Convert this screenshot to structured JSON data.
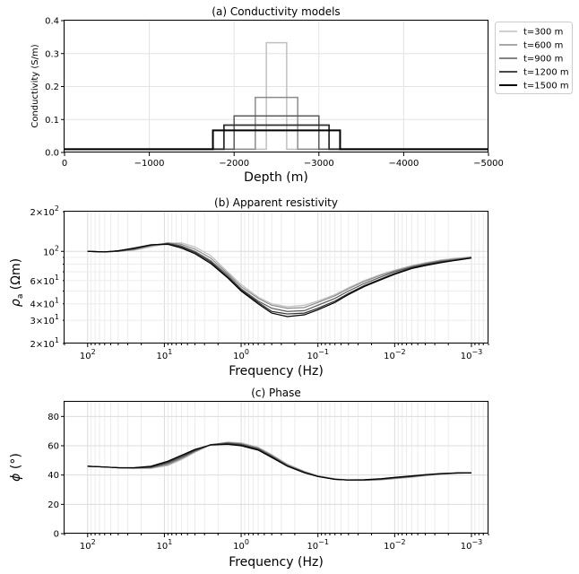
{
  "chart_data": [
    {
      "id": "a",
      "type": "line",
      "title": "(a) Conductivity models",
      "xlabel": "Depth (m)",
      "ylabel": "Conductivity (S/m)",
      "xlim": [
        0,
        -5000
      ],
      "ylim": [
        0,
        0.4
      ],
      "xticks": [
        0,
        -1000,
        -2000,
        -3000,
        -4000,
        -5000
      ],
      "xtick_labels": [
        "0",
        "−1000",
        "−2000",
        "−3000",
        "−4000",
        "−5000"
      ],
      "yticks": [
        0,
        0.1,
        0.2,
        0.3,
        0.4
      ],
      "ytick_labels": [
        "0.0",
        "0.1",
        "0.2",
        "0.3",
        "0.4"
      ],
      "background": 0.01,
      "grid": true,
      "legend_position": "outside-right",
      "series": [
        {
          "name": "t=300 m",
          "color": "#c0c0c0",
          "width": 1.5,
          "x_start": -2380,
          "x_end": -2620,
          "value": 0.333
        },
        {
          "name": "t=600 m",
          "color": "#8c8c8c",
          "width": 1.5,
          "x_start": -2250,
          "x_end": -2750,
          "value": 0.167
        },
        {
          "name": "t=900 m",
          "color": "#5a5a5a",
          "width": 1.5,
          "x_start": -2000,
          "x_end": -3000,
          "value": 0.111
        },
        {
          "name": "t=1200 m",
          "color": "#2e2e2e",
          "width": 1.8,
          "x_start": -1880,
          "x_end": -3120,
          "value": 0.083
        },
        {
          "name": "t=1500 m",
          "color": "#000000",
          "width": 2.0,
          "x_start": -1750,
          "x_end": -3250,
          "value": 0.067
        }
      ]
    },
    {
      "id": "b",
      "type": "line",
      "title": "(b) Apparent resistivity",
      "xlabel": "Frequency (Hz)",
      "ylabel": "ρa (Ωm)",
      "xscale": "log",
      "yscale": "log",
      "xlim": [
        200,
        0.0006
      ],
      "ylim": [
        20,
        200
      ],
      "x": [
        100,
        60,
        40,
        25,
        15,
        9,
        6,
        4,
        2.5,
        1.5,
        1,
        0.6,
        0.4,
        0.25,
        0.15,
        0.1,
        0.06,
        0.04,
        0.025,
        0.015,
        0.01,
        0.006,
        0.004,
        0.0025,
        0.0015,
        0.001
      ],
      "series": [
        {
          "name": "t=300 m",
          "color": "#c0c0c0",
          "values": [
            100,
            99,
            100,
            102,
            108,
            115,
            116,
            108,
            93,
            70,
            56,
            45,
            40,
            38,
            39,
            42,
            47,
            53,
            60,
            67,
            72,
            78,
            82,
            86,
            89,
            91
          ]
        },
        {
          "name": "t=600 m",
          "color": "#8c8c8c",
          "values": [
            100,
            99,
            100,
            103,
            110,
            116,
            113,
            104,
            89,
            68,
            54,
            44,
            39,
            37,
            37.5,
            41,
            46,
            52,
            59,
            66,
            71,
            77,
            81,
            85,
            88,
            90
          ]
        },
        {
          "name": "t=900 m",
          "color": "#5a5a5a",
          "values": [
            100,
            99,
            100,
            104,
            111,
            115,
            110,
            100,
            85,
            66,
            52,
            42,
            37,
            35,
            35.5,
            39,
            44,
            50,
            57,
            64,
            70,
            76,
            80,
            84,
            87,
            90
          ]
        },
        {
          "name": "t=1200 m",
          "color": "#2e2e2e",
          "values": [
            100,
            99,
            101,
            105,
            112,
            114,
            108,
            98,
            83,
            64,
            51,
            41,
            35,
            33.5,
            34,
            37,
            42,
            48,
            55,
            62,
            68,
            75,
            79,
            83,
            86,
            89
          ]
        },
        {
          "name": "t=1500 m",
          "color": "#000000",
          "values": [
            100,
            99,
            101,
            106,
            112,
            113,
            106,
            96,
            81,
            63,
            50,
            40,
            34,
            32,
            33,
            36,
            41,
            47,
            54,
            61,
            67,
            74,
            78,
            82,
            86,
            89
          ]
        }
      ],
      "grid": true
    },
    {
      "id": "c",
      "type": "line",
      "title": "(c) Phase",
      "xlabel": "Frequency (Hz)",
      "ylabel": "ϕ (°)",
      "xscale": "log",
      "xlim": [
        200,
        0.0006
      ],
      "ylim": [
        0,
        90
      ],
      "yticks": [
        0,
        20,
        40,
        60,
        80
      ],
      "ytick_labels": [
        "0",
        "20",
        "40",
        "60",
        "80"
      ],
      "x": [
        100,
        60,
        40,
        25,
        15,
        9,
        6,
        4,
        2.5,
        1.5,
        1,
        0.6,
        0.4,
        0.25,
        0.15,
        0.1,
        0.06,
        0.04,
        0.025,
        0.015,
        0.01,
        0.006,
        0.004,
        0.0025,
        0.0015,
        0.001
      ],
      "series": [
        {
          "name": "t=300 m",
          "color": "#c0c0c0",
          "values": [
            46,
            45.5,
            45,
            44.6,
            44.5,
            46.5,
            50.5,
            55.5,
            60.5,
            62.5,
            62,
            59,
            54,
            47.5,
            42.5,
            39.5,
            37.5,
            36.5,
            36.3,
            36.7,
            37.5,
            38.5,
            39.5,
            40.5,
            41.2,
            41.5
          ]
        },
        {
          "name": "t=600 m",
          "color": "#8c8c8c",
          "values": [
            46,
            45.5,
            45,
            44.7,
            44.8,
            47.2,
            51.2,
            56,
            60.7,
            62.3,
            61.5,
            58.5,
            53.5,
            47,
            42.3,
            39.3,
            37.3,
            36.5,
            36.4,
            36.9,
            37.7,
            38.8,
            39.8,
            40.7,
            41.3,
            41.5
          ]
        },
        {
          "name": "t=900 m",
          "color": "#5a5a5a",
          "values": [
            46,
            45.5,
            45,
            44.8,
            45.2,
            48,
            52,
            56.5,
            60.8,
            61.8,
            61,
            58,
            53,
            46.5,
            42,
            39.2,
            37.2,
            36.5,
            36.5,
            37.1,
            38,
            39,
            40,
            40.8,
            41.4,
            41.5
          ]
        },
        {
          "name": "t=1200 m",
          "color": "#2e2e2e",
          "values": [
            46,
            45.5,
            45,
            44.9,
            45.6,
            48.8,
            52.8,
            57,
            60.7,
            61.3,
            60.5,
            57.5,
            52.5,
            46.2,
            41.8,
            39,
            37.1,
            36.6,
            36.7,
            37.3,
            38.2,
            39.2,
            40.1,
            40.9,
            41.5,
            41.5
          ]
        },
        {
          "name": "t=1500 m",
          "color": "#000000",
          "values": [
            46,
            45.5,
            45,
            45,
            46,
            49.5,
            53.5,
            57.5,
            60.5,
            61,
            60,
            57,
            52,
            46,
            41.5,
            39,
            37,
            36.7,
            36.8,
            37.5,
            38.4,
            39.4,
            40.3,
            41,
            41.5,
            41.5
          ]
        }
      ],
      "grid": true
    }
  ]
}
